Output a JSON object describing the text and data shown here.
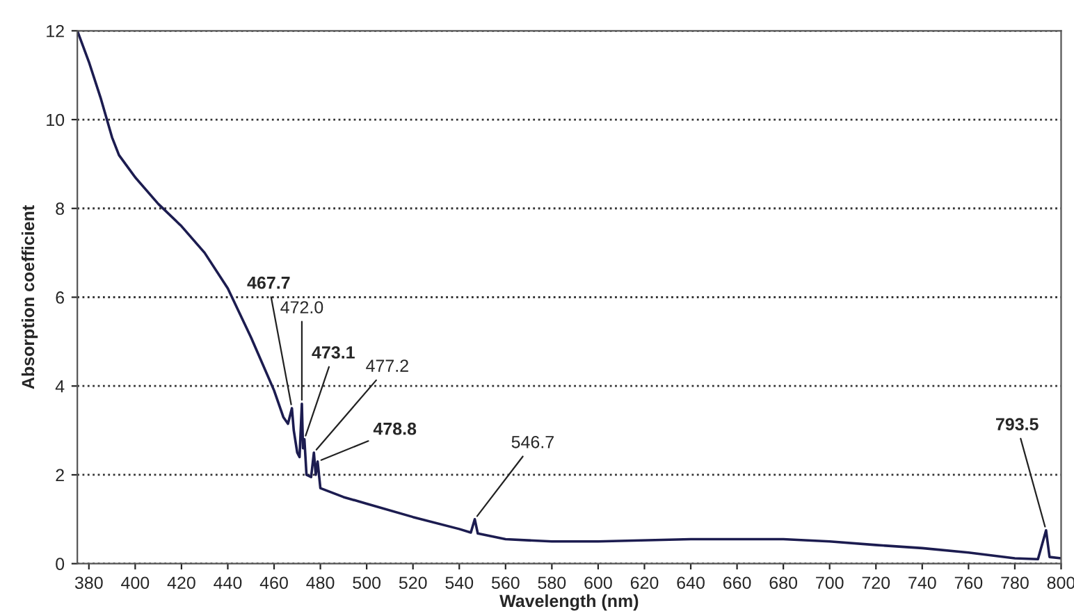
{
  "chart_data": {
    "type": "line",
    "xlabel": "Wavelength (nm)",
    "ylabel": "Absorption coefficient",
    "xlim": [
      375,
      800
    ],
    "xticks": [
      380,
      400,
      420,
      440,
      460,
      480,
      500,
      520,
      540,
      560,
      580,
      600,
      620,
      640,
      660,
      680,
      700,
      720,
      740,
      760,
      780,
      800
    ],
    "ylim": [
      0,
      12
    ],
    "yticks": [
      0,
      2,
      4,
      6,
      8,
      10,
      12
    ],
    "grid": "y",
    "line_style": "solid",
    "series": [
      {
        "color": "#1c1c50",
        "x": [
          375,
          380,
          385,
          390,
          393,
          400,
          410,
          420,
          430,
          440,
          450,
          460,
          464,
          466,
          467.7,
          468.5,
          470,
          471,
          472.0,
          472.5,
          473.1,
          474,
          476,
          477.2,
          478,
          478.8,
          480,
          490,
          500,
          520,
          540,
          545,
          546.7,
          548,
          560,
          580,
          600,
          640,
          680,
          700,
          720,
          740,
          760,
          780,
          790,
          793.5,
          795,
          800
        ],
        "values": [
          12.0,
          11.3,
          10.5,
          9.6,
          9.2,
          8.7,
          8.1,
          7.6,
          7.0,
          6.2,
          5.1,
          3.9,
          3.3,
          3.15,
          3.5,
          3.0,
          2.5,
          2.4,
          3.6,
          2.6,
          2.8,
          2.0,
          1.95,
          2.5,
          2.0,
          2.3,
          1.7,
          1.5,
          1.35,
          1.05,
          0.78,
          0.7,
          1.0,
          0.68,
          0.55,
          0.5,
          0.5,
          0.55,
          0.55,
          0.5,
          0.42,
          0.35,
          0.25,
          0.12,
          0.1,
          0.75,
          0.15,
          0.12
        ]
      }
    ],
    "annotations": [
      {
        "text": "467.7",
        "x": 467.7,
        "y": 3.5
      },
      {
        "text": "472.0",
        "x": 472.0,
        "y": 3.6
      },
      {
        "text": "473.1",
        "x": 473.1,
        "y": 2.8
      },
      {
        "text": "477.2",
        "x": 477.2,
        "y": 2.5
      },
      {
        "text": "478.8",
        "x": 478.8,
        "y": 2.3
      },
      {
        "text": "546.7",
        "x": 546.7,
        "y": 1.0
      },
      {
        "text": "793.5",
        "x": 793.5,
        "y": 0.75
      }
    ]
  }
}
